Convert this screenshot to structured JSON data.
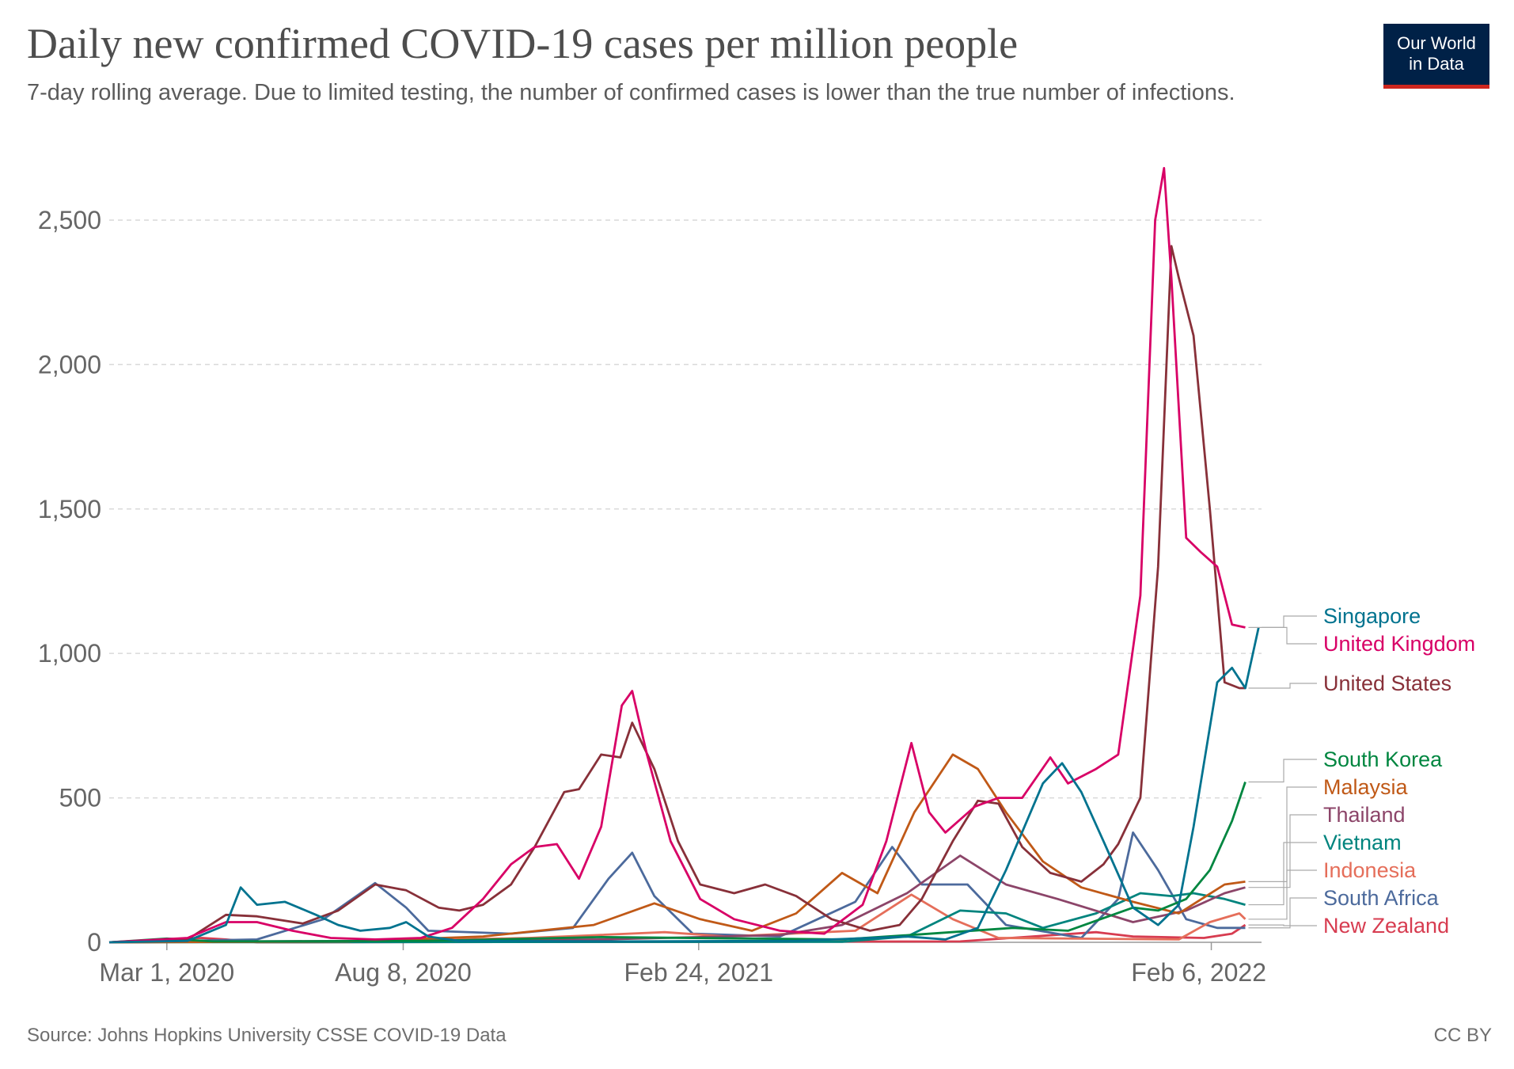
{
  "header": {
    "title": "Daily new confirmed COVID-19 cases per million people",
    "subtitle": "7-day rolling average. Due to limited testing, the number of confirmed cases is lower than the true number of infections."
  },
  "logo": {
    "line1": "Our World",
    "line2": "in Data"
  },
  "footer": {
    "source": "Source: Johns Hopkins University CSSE COVID-19 Data",
    "license": "CC BY"
  },
  "colors": {
    "grid": "#d9d9d9",
    "axis": "#666666",
    "text": "#5b5b5b"
  },
  "chart_data": {
    "type": "line",
    "title": "Daily new confirmed COVID-19 cases per million people",
    "subtitle": "7-day rolling average. Due to limited testing, the number of confirmed cases is lower than the true number of infections.",
    "xlim": [
      "2020-01-22",
      "2022-03-12"
    ],
    "ylim": [
      0,
      2700
    ],
    "x_ticks": [
      {
        "date": "2020-03-01",
        "label": "Mar 1, 2020"
      },
      {
        "date": "2020-08-08",
        "label": "Aug 8, 2020"
      },
      {
        "date": "2021-02-24",
        "label": "Feb 24, 2021"
      },
      {
        "date": "2022-02-06",
        "label": "Feb 6, 2022"
      }
    ],
    "y_ticks": [
      0,
      500,
      1000,
      1500,
      2000,
      2500
    ],
    "y_tick_labels": [
      "0",
      "500",
      "1,000",
      "1,500",
      "2,000",
      "2,500"
    ],
    "grid": true,
    "legend_position": "right, labels at line ends",
    "series": [
      {
        "name": "Singapore",
        "color": "#00738f",
        "points": [
          [
            "2020-01-22",
            0
          ],
          [
            "2020-03-15",
            5
          ],
          [
            "2020-04-10",
            60
          ],
          [
            "2020-04-20",
            190
          ],
          [
            "2020-05-01",
            130
          ],
          [
            "2020-05-20",
            140
          ],
          [
            "2020-06-10",
            95
          ],
          [
            "2020-06-25",
            60
          ],
          [
            "2020-07-10",
            40
          ],
          [
            "2020-07-30",
            50
          ],
          [
            "2020-08-10",
            70
          ],
          [
            "2020-08-25",
            20
          ],
          [
            "2020-09-15",
            5
          ],
          [
            "2021-01-01",
            3
          ],
          [
            "2021-05-01",
            5
          ],
          [
            "2021-07-15",
            20
          ],
          [
            "2021-08-10",
            10
          ],
          [
            "2021-09-01",
            50
          ],
          [
            "2021-09-20",
            250
          ],
          [
            "2021-10-15",
            550
          ],
          [
            "2021-10-28",
            620
          ],
          [
            "2021-11-10",
            520
          ],
          [
            "2021-11-25",
            350
          ],
          [
            "2021-12-15",
            120
          ],
          [
            "2022-01-01",
            60
          ],
          [
            "2022-01-15",
            130
          ],
          [
            "2022-01-25",
            400
          ],
          [
            "2022-02-10",
            900
          ],
          [
            "2022-02-20",
            950
          ],
          [
            "2022-03-01",
            880
          ],
          [
            "2022-03-10",
            1090
          ]
        ]
      },
      {
        "name": "United Kingdom",
        "color": "#d80066",
        "points": [
          [
            "2020-01-22",
            0
          ],
          [
            "2020-03-15",
            15
          ],
          [
            "2020-04-10",
            70
          ],
          [
            "2020-05-01",
            70
          ],
          [
            "2020-05-25",
            40
          ],
          [
            "2020-06-20",
            15
          ],
          [
            "2020-07-20",
            10
          ],
          [
            "2020-08-20",
            15
          ],
          [
            "2020-09-10",
            50
          ],
          [
            "2020-10-01",
            150
          ],
          [
            "2020-10-20",
            270
          ],
          [
            "2020-11-05",
            330
          ],
          [
            "2020-11-20",
            340
          ],
          [
            "2020-12-05",
            220
          ],
          [
            "2020-12-20",
            400
          ],
          [
            "2021-01-03",
            820
          ],
          [
            "2021-01-10",
            870
          ],
          [
            "2021-01-20",
            650
          ],
          [
            "2021-02-05",
            350
          ],
          [
            "2021-02-25",
            150
          ],
          [
            "2021-03-20",
            80
          ],
          [
            "2021-04-20",
            40
          ],
          [
            "2021-05-20",
            30
          ],
          [
            "2021-06-15",
            130
          ],
          [
            "2021-07-01",
            350
          ],
          [
            "2021-07-18",
            690
          ],
          [
            "2021-07-30",
            450
          ],
          [
            "2021-08-10",
            380
          ],
          [
            "2021-08-30",
            470
          ],
          [
            "2021-09-15",
            500
          ],
          [
            "2021-10-01",
            500
          ],
          [
            "2021-10-20",
            640
          ],
          [
            "2021-11-01",
            550
          ],
          [
            "2021-11-20",
            600
          ],
          [
            "2021-12-05",
            650
          ],
          [
            "2021-12-20",
            1200
          ],
          [
            "2021-12-30",
            2500
          ],
          [
            "2022-01-05",
            2680
          ],
          [
            "2022-01-10",
            2300
          ],
          [
            "2022-01-20",
            1400
          ],
          [
            "2022-01-30",
            1350
          ],
          [
            "2022-02-10",
            1300
          ],
          [
            "2022-02-20",
            1100
          ],
          [
            "2022-03-01",
            1090
          ]
        ]
      },
      {
        "name": "United States",
        "color": "#883039",
        "points": [
          [
            "2020-01-22",
            0
          ],
          [
            "2020-03-15",
            10
          ],
          [
            "2020-04-10",
            95
          ],
          [
            "2020-05-01",
            90
          ],
          [
            "2020-06-01",
            65
          ],
          [
            "2020-06-25",
            110
          ],
          [
            "2020-07-20",
            200
          ],
          [
            "2020-08-10",
            180
          ],
          [
            "2020-09-01",
            120
          ],
          [
            "2020-09-15",
            110
          ],
          [
            "2020-10-01",
            130
          ],
          [
            "2020-10-20",
            200
          ],
          [
            "2020-11-05",
            330
          ],
          [
            "2020-11-25",
            520
          ],
          [
            "2020-12-05",
            530
          ],
          [
            "2020-12-20",
            650
          ],
          [
            "2021-01-02",
            640
          ],
          [
            "2021-01-10",
            760
          ],
          [
            "2021-01-25",
            600
          ],
          [
            "2021-02-10",
            350
          ],
          [
            "2021-02-25",
            200
          ],
          [
            "2021-03-20",
            170
          ],
          [
            "2021-04-10",
            200
          ],
          [
            "2021-05-01",
            160
          ],
          [
            "2021-05-25",
            80
          ],
          [
            "2021-06-20",
            40
          ],
          [
            "2021-07-10",
            60
          ],
          [
            "2021-07-25",
            150
          ],
          [
            "2021-08-15",
            350
          ],
          [
            "2021-09-01",
            490
          ],
          [
            "2021-09-15",
            480
          ],
          [
            "2021-10-01",
            330
          ],
          [
            "2021-10-20",
            240
          ],
          [
            "2021-11-10",
            210
          ],
          [
            "2021-11-25",
            270
          ],
          [
            "2021-12-05",
            340
          ],
          [
            "2021-12-20",
            500
          ],
          [
            "2022-01-01",
            1300
          ],
          [
            "2022-01-10",
            2410
          ],
          [
            "2022-01-15",
            2300
          ],
          [
            "2022-01-25",
            2100
          ],
          [
            "2022-02-05",
            1500
          ],
          [
            "2022-02-15",
            900
          ],
          [
            "2022-02-25",
            880
          ],
          [
            "2022-03-01",
            880
          ]
        ]
      },
      {
        "name": "South Korea",
        "color": "#008640",
        "points": [
          [
            "2020-01-22",
            0
          ],
          [
            "2020-03-01",
            13
          ],
          [
            "2020-04-01",
            3
          ],
          [
            "2020-08-25",
            5
          ],
          [
            "2020-12-20",
            18
          ],
          [
            "2021-06-01",
            10
          ],
          [
            "2021-07-25",
            28
          ],
          [
            "2021-09-25",
            50
          ],
          [
            "2021-11-01",
            40
          ],
          [
            "2021-12-15",
            120
          ],
          [
            "2022-01-01",
            110
          ],
          [
            "2022-01-20",
            150
          ],
          [
            "2022-02-05",
            250
          ],
          [
            "2022-02-20",
            420
          ],
          [
            "2022-03-01",
            555
          ]
        ]
      },
      {
        "name": "Malaysia",
        "color": "#c05917",
        "points": [
          [
            "2020-01-22",
            0
          ],
          [
            "2020-07-01",
            3
          ],
          [
            "2020-10-01",
            20
          ],
          [
            "2020-12-15",
            60
          ],
          [
            "2021-01-25",
            135
          ],
          [
            "2021-02-25",
            80
          ],
          [
            "2021-04-01",
            40
          ],
          [
            "2021-05-01",
            100
          ],
          [
            "2021-06-01",
            240
          ],
          [
            "2021-06-25",
            170
          ],
          [
            "2021-07-20",
            450
          ],
          [
            "2021-08-15",
            650
          ],
          [
            "2021-09-01",
            600
          ],
          [
            "2021-09-20",
            450
          ],
          [
            "2021-10-15",
            280
          ],
          [
            "2021-11-10",
            190
          ],
          [
            "2021-12-15",
            140
          ],
          [
            "2022-01-15",
            100
          ],
          [
            "2022-02-15",
            200
          ],
          [
            "2022-03-01",
            210
          ]
        ]
      },
      {
        "name": "Thailand",
        "color": "#8c4569",
        "points": [
          [
            "2020-01-22",
            0
          ],
          [
            "2020-12-20",
            10
          ],
          [
            "2021-04-20",
            25
          ],
          [
            "2021-06-01",
            60
          ],
          [
            "2021-07-15",
            170
          ],
          [
            "2021-08-20",
            300
          ],
          [
            "2021-09-20",
            200
          ],
          [
            "2021-10-25",
            150
          ],
          [
            "2021-12-15",
            70
          ],
          [
            "2022-01-20",
            110
          ],
          [
            "2022-02-15",
            170
          ],
          [
            "2022-03-01",
            190
          ]
        ]
      },
      {
        "name": "Vietnam",
        "color": "#00847e",
        "points": [
          [
            "2020-01-22",
            0
          ],
          [
            "2021-06-01",
            2
          ],
          [
            "2021-07-15",
            20
          ],
          [
            "2021-08-20",
            110
          ],
          [
            "2021-09-20",
            100
          ],
          [
            "2021-10-15",
            50
          ],
          [
            "2021-11-20",
            100
          ],
          [
            "2021-12-20",
            170
          ],
          [
            "2022-01-10",
            160
          ],
          [
            "2022-01-25",
            170
          ],
          [
            "2022-02-15",
            150
          ],
          [
            "2022-03-01",
            130
          ]
        ]
      },
      {
        "name": "Indonesia",
        "color": "#e56e5a",
        "points": [
          [
            "2020-01-22",
            0
          ],
          [
            "2020-08-01",
            5
          ],
          [
            "2020-11-01",
            15
          ],
          [
            "2021-02-01",
            35
          ],
          [
            "2021-03-15",
            20
          ],
          [
            "2021-06-10",
            40
          ],
          [
            "2021-07-18",
            165
          ],
          [
            "2021-08-15",
            80
          ],
          [
            "2021-09-15",
            15
          ],
          [
            "2022-01-15",
            10
          ],
          [
            "2022-02-05",
            70
          ],
          [
            "2022-02-25",
            100
          ],
          [
            "2022-03-01",
            80
          ]
        ]
      },
      {
        "name": "South Africa",
        "color": "#4c6a9c",
        "points": [
          [
            "2020-01-22",
            0
          ],
          [
            "2020-05-01",
            10
          ],
          [
            "2020-06-15",
            80
          ],
          [
            "2020-07-20",
            205
          ],
          [
            "2020-08-10",
            120
          ],
          [
            "2020-08-25",
            40
          ],
          [
            "2020-10-20",
            30
          ],
          [
            "2020-12-01",
            50
          ],
          [
            "2020-12-25",
            220
          ],
          [
            "2021-01-10",
            310
          ],
          [
            "2021-01-25",
            160
          ],
          [
            "2021-02-20",
            30
          ],
          [
            "2021-04-20",
            20
          ],
          [
            "2021-06-10",
            140
          ],
          [
            "2021-07-05",
            330
          ],
          [
            "2021-07-25",
            200
          ],
          [
            "2021-08-25",
            200
          ],
          [
            "2021-09-20",
            60
          ],
          [
            "2021-11-10",
            15
          ],
          [
            "2021-12-05",
            150
          ],
          [
            "2021-12-15",
            380
          ],
          [
            "2022-01-01",
            250
          ],
          [
            "2022-01-20",
            80
          ],
          [
            "2022-02-10",
            50
          ],
          [
            "2022-03-01",
            50
          ]
        ]
      },
      {
        "name": "New Zealand",
        "color": "#d73c50",
        "points": [
          [
            "2020-01-22",
            0
          ],
          [
            "2020-03-25",
            15
          ],
          [
            "2020-04-10",
            10
          ],
          [
            "2020-05-01",
            0
          ],
          [
            "2021-08-20",
            3
          ],
          [
            "2021-11-20",
            35
          ],
          [
            "2021-12-15",
            20
          ],
          [
            "2022-02-01",
            15
          ],
          [
            "2022-02-20",
            30
          ],
          [
            "2022-03-01",
            60
          ]
        ]
      }
    ]
  }
}
